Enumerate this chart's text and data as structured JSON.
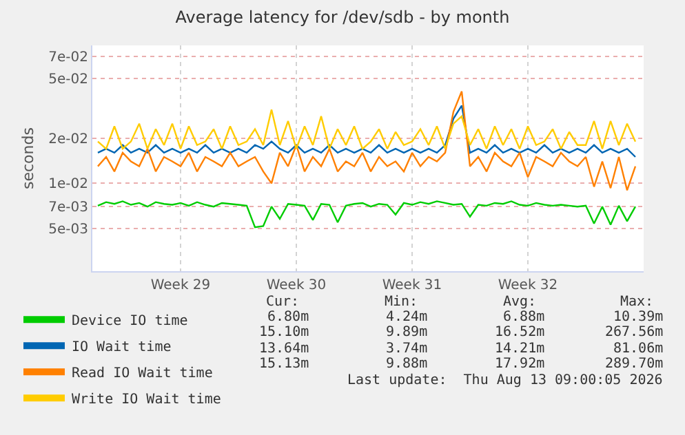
{
  "chart_data": {
    "type": "line",
    "title": "Average latency for /dev/sdb - by month",
    "ylabel": "seconds",
    "x": [
      "2026-07-11T12:00",
      "2026-07-12T00:00",
      "2026-07-12T12:00",
      "2026-07-13T00:00",
      "2026-07-13T12:00",
      "2026-07-14T00:00",
      "2026-07-14T12:00",
      "2026-07-15T00:00",
      "2026-07-15T12:00",
      "2026-07-16T00:00",
      "2026-07-16T12:00",
      "2026-07-17T00:00",
      "2026-07-17T12:00",
      "2026-07-18T00:00",
      "2026-07-18T12:00",
      "2026-07-19T00:00",
      "2026-07-19T12:00",
      "2026-07-20T00:00",
      "2026-07-20T12:00",
      "2026-07-21T00:00",
      "2026-07-21T12:00",
      "2026-07-22T00:00",
      "2026-07-22T12:00",
      "2026-07-23T00:00",
      "2026-07-23T12:00",
      "2026-07-24T00:00",
      "2026-07-24T12:00",
      "2026-07-25T00:00",
      "2026-07-25T12:00",
      "2026-07-26T00:00",
      "2026-07-26T12:00",
      "2026-07-27T00:00",
      "2026-07-27T12:00",
      "2026-07-28T00:00",
      "2026-07-28T12:00",
      "2026-07-29T00:00",
      "2026-07-29T12:00",
      "2026-07-30T00:00",
      "2026-07-30T12:00",
      "2026-07-31T00:00",
      "2026-07-31T12:00",
      "2026-08-01T00:00",
      "2026-08-01T12:00",
      "2026-08-02T00:00",
      "2026-08-02T12:00",
      "2026-08-03T00:00",
      "2026-08-03T12:00",
      "2026-08-04T00:00",
      "2026-08-04T12:00",
      "2026-08-05T00:00",
      "2026-08-05T12:00",
      "2026-08-06T00:00",
      "2026-08-06T12:00",
      "2026-08-07T00:00",
      "2026-08-07T12:00",
      "2026-08-08T00:00",
      "2026-08-08T12:00",
      "2026-08-09T00:00",
      "2026-08-09T12:00",
      "2026-08-10T00:00",
      "2026-08-10T12:00",
      "2026-08-11T00:00",
      "2026-08-11T12:00",
      "2026-08-12T00:00",
      "2026-08-12T12:00",
      "2026-08-13T00:00"
    ],
    "series": [
      {
        "name": "Device IO time",
        "color": "#00cc00",
        "values": [
          0.0071,
          0.0075,
          0.0073,
          0.0076,
          0.0072,
          0.0074,
          0.007,
          0.0075,
          0.0073,
          0.0072,
          0.0074,
          0.0071,
          0.0075,
          0.0072,
          0.007,
          0.0074,
          0.0073,
          0.0072,
          0.0071,
          0.0051,
          0.0052,
          0.007,
          0.0058,
          0.0073,
          0.0072,
          0.0071,
          0.0057,
          0.0073,
          0.0072,
          0.0055,
          0.0071,
          0.0073,
          0.0074,
          0.007,
          0.0073,
          0.0072,
          0.0062,
          0.0074,
          0.0072,
          0.0075,
          0.0073,
          0.0076,
          0.0074,
          0.0072,
          0.0073,
          0.006,
          0.0072,
          0.0071,
          0.0074,
          0.0073,
          0.0076,
          0.0072,
          0.0071,
          0.0074,
          0.0072,
          0.0071,
          0.0072,
          0.0071,
          0.007,
          0.0071,
          0.0054,
          0.007,
          0.0053,
          0.0071,
          0.0056,
          0.007
        ]
      },
      {
        "name": "IO Wait time",
        "color": "#0066b3",
        "values": [
          0.016,
          0.017,
          0.016,
          0.018,
          0.016,
          0.017,
          0.016,
          0.018,
          0.016,
          0.017,
          0.016,
          0.017,
          0.016,
          0.018,
          0.016,
          0.017,
          0.016,
          0.017,
          0.016,
          0.018,
          0.017,
          0.019,
          0.017,
          0.016,
          0.018,
          0.016,
          0.017,
          0.016,
          0.018,
          0.016,
          0.017,
          0.016,
          0.017,
          0.016,
          0.018,
          0.016,
          0.017,
          0.016,
          0.017,
          0.016,
          0.017,
          0.016,
          0.018,
          0.027,
          0.033,
          0.016,
          0.017,
          0.016,
          0.018,
          0.016,
          0.017,
          0.016,
          0.017,
          0.016,
          0.018,
          0.016,
          0.017,
          0.016,
          0.017,
          0.016,
          0.018,
          0.016,
          0.017,
          0.016,
          0.017,
          0.015
        ]
      },
      {
        "name": "Read IO Wait time",
        "color": "#ff8000",
        "values": [
          0.013,
          0.015,
          0.012,
          0.016,
          0.014,
          0.013,
          0.017,
          0.012,
          0.015,
          0.014,
          0.013,
          0.016,
          0.012,
          0.015,
          0.014,
          0.013,
          0.016,
          0.013,
          0.014,
          0.015,
          0.012,
          0.01,
          0.016,
          0.013,
          0.018,
          0.012,
          0.015,
          0.013,
          0.017,
          0.012,
          0.014,
          0.013,
          0.016,
          0.012,
          0.015,
          0.013,
          0.014,
          0.012,
          0.016,
          0.013,
          0.015,
          0.014,
          0.016,
          0.03,
          0.041,
          0.013,
          0.015,
          0.012,
          0.016,
          0.014,
          0.013,
          0.016,
          0.011,
          0.015,
          0.014,
          0.013,
          0.016,
          0.014,
          0.013,
          0.015,
          0.0095,
          0.014,
          0.0093,
          0.015,
          0.009,
          0.013
        ]
      },
      {
        "name": "Write IO Wait time",
        "color": "#ffcc00",
        "values": [
          0.019,
          0.017,
          0.024,
          0.017,
          0.019,
          0.025,
          0.017,
          0.023,
          0.018,
          0.025,
          0.017,
          0.024,
          0.018,
          0.019,
          0.023,
          0.017,
          0.024,
          0.018,
          0.019,
          0.023,
          0.018,
          0.031,
          0.018,
          0.026,
          0.017,
          0.024,
          0.018,
          0.028,
          0.017,
          0.023,
          0.018,
          0.024,
          0.017,
          0.019,
          0.023,
          0.017,
          0.022,
          0.018,
          0.019,
          0.023,
          0.018,
          0.024,
          0.017,
          0.025,
          0.028,
          0.018,
          0.023,
          0.017,
          0.024,
          0.018,
          0.023,
          0.017,
          0.024,
          0.018,
          0.019,
          0.023,
          0.017,
          0.022,
          0.018,
          0.018,
          0.026,
          0.017,
          0.026,
          0.018,
          0.025,
          0.019
        ]
      }
    ],
    "log": "y",
    "ylim": [
      0.0026,
      0.083
    ],
    "yticks": [
      {
        "value": 0.005,
        "label": "5e-03"
      },
      {
        "value": 0.007,
        "label": "7e-03"
      },
      {
        "value": 0.01,
        "label": "1e-02"
      },
      {
        "value": 0.02,
        "label": "2e-02"
      },
      {
        "value": 0.05,
        "label": "5e-02"
      },
      {
        "value": 0.07,
        "label": "7e-02"
      }
    ],
    "xlim": [
      "2026-07-11T04:00",
      "2026-08-13T12:00"
    ],
    "xticks": [
      {
        "value": "2026-07-16T12:00",
        "label": "Week 29"
      },
      {
        "value": "2026-07-23T12:00",
        "label": "Week 30"
      },
      {
        "value": "2026-07-30T12:00",
        "label": "Week 31"
      },
      {
        "value": "2026-08-06T12:00",
        "label": "Week 32"
      }
    ],
    "grid": true,
    "legend": "bottom left",
    "marker": "none",
    "line_style": "solid",
    "annotations": [
      "Cur:",
      "Min:",
      "Avg:",
      "Max:",
      "6.80m",
      "4.24m",
      "6.88m",
      "10.39m",
      "15.10m",
      "9.89m",
      "16.52m",
      "267.56m",
      "13.64m",
      "3.74m",
      "14.21m",
      "81.06m",
      "15.13m",
      "9.88m",
      "17.92m",
      "289.70m",
      "Last update:  Thu Aug 13 09:00:05 2026"
    ]
  }
}
